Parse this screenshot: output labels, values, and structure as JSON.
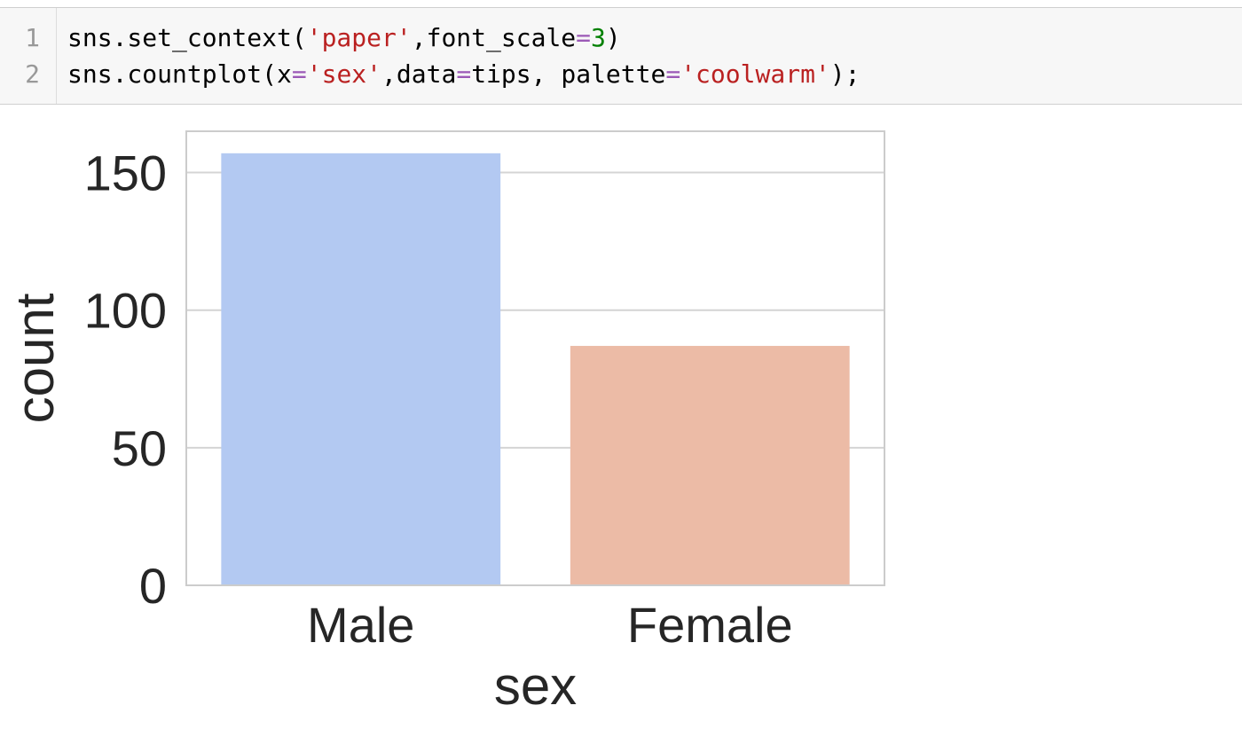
{
  "code_cell": {
    "lines": [
      {
        "number": "1",
        "segments": [
          {
            "text": "sns.set_context(",
            "kind": "plain"
          },
          {
            "text": "'paper'",
            "kind": "str"
          },
          {
            "text": ",font_scale",
            "kind": "plain"
          },
          {
            "text": "=",
            "kind": "op"
          },
          {
            "text": "3",
            "kind": "num"
          },
          {
            "text": ")",
            "kind": "plain"
          }
        ]
      },
      {
        "number": "2",
        "segments": [
          {
            "text": "sns.countplot(x",
            "kind": "plain"
          },
          {
            "text": "=",
            "kind": "op"
          },
          {
            "text": "'sex'",
            "kind": "str"
          },
          {
            "text": ",data",
            "kind": "plain"
          },
          {
            "text": "=",
            "kind": "op"
          },
          {
            "text": "tips, palette",
            "kind": "plain"
          },
          {
            "text": "=",
            "kind": "op"
          },
          {
            "text": "'coolwarm'",
            "kind": "str"
          },
          {
            "text": ");",
            "kind": "plain"
          }
        ]
      }
    ],
    "colors": {
      "background": "#f7f7f7",
      "string": "#ba2121",
      "operator": "#9b59b6",
      "number": "#008000"
    }
  },
  "chart_data": {
    "type": "bar",
    "categories": [
      "Male",
      "Female"
    ],
    "values": [
      157,
      87
    ],
    "colors": [
      "#b3c9f2",
      "#ecbba6"
    ],
    "xlabel": "sex",
    "ylabel": "count",
    "ylim": [
      0,
      165
    ],
    "yticks": [
      0,
      50,
      100,
      150
    ],
    "ytick_labels": [
      "0",
      "50",
      "100",
      "150"
    ],
    "grid": "horizontal",
    "grid_color": "#d4d4d4",
    "spine_color": "#cccccc"
  }
}
